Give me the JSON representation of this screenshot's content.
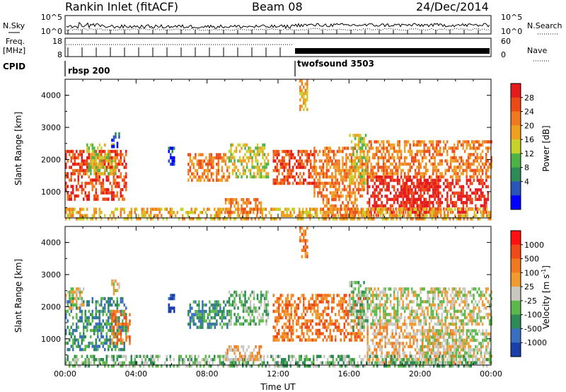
{
  "header": {
    "station": "Rankin Inlet (fitACF)",
    "beam": "Beam 08",
    "date": "24/Dec/2014"
  },
  "top_panels": {
    "nsky_label": "N.Sky",
    "nsky_ticks": [
      "10^5",
      "10^0"
    ],
    "nsearch_label": "N.Search",
    "nsearch_ticks": [
      "10^5",
      "10^0"
    ],
    "freq_label": "Freq.",
    "freq_unit": "[MHz]",
    "freq_ticks": [
      "18",
      "8"
    ],
    "nave_label": "Nave",
    "nave_ticks": [
      "60",
      "0"
    ],
    "cpid_label": "CPID",
    "programs": [
      {
        "name": "rbsp 200",
        "start_hour": 0
      },
      {
        "name": "twofsound 3503",
        "start_hour": 13
      }
    ]
  },
  "chart_data": [
    {
      "type": "heatmap",
      "panel": "power",
      "ylabel": "Slant Range [km]",
      "ylim": [
        180,
        4500
      ],
      "yticks": [
        "1000",
        "2000",
        "3000",
        "4000"
      ],
      "xlim": [
        0,
        24
      ],
      "xticks": [
        "00:00",
        "04:00",
        "08:00",
        "12:00",
        "16:00",
        "20:00",
        "00:00"
      ],
      "colorbar": {
        "label": "Power [dB]",
        "ticks": [
          "4",
          "8",
          "12",
          "16",
          "20",
          "24",
          "28"
        ],
        "colors": [
          "#0000ff",
          "#2a55b8",
          "#2e8a57",
          "#4fb247",
          "#c9d22b",
          "#f0a020",
          "#f07a20",
          "#ee4a18",
          "#e41a1c"
        ]
      },
      "regions": [
        {
          "x0": 0.0,
          "x1": 3.4,
          "y0": 800,
          "y1": 2300,
          "level": 7
        },
        {
          "x0": 1.2,
          "x1": 2.8,
          "y0": 1600,
          "y1": 2500,
          "level": 4
        },
        {
          "x0": 2.6,
          "x1": 3.0,
          "y0": 2400,
          "y1": 2850,
          "level": 1
        },
        {
          "x0": 5.8,
          "x1": 6.1,
          "y0": 1900,
          "y1": 2400,
          "level": 1
        },
        {
          "x0": 6.9,
          "x1": 9.2,
          "y0": 1400,
          "y1": 2200,
          "level": 6
        },
        {
          "x0": 9.2,
          "x1": 11.4,
          "y0": 1500,
          "y1": 2500,
          "level": 4
        },
        {
          "x0": 11.7,
          "x1": 14.0,
          "y0": 1300,
          "y1": 2300,
          "level": 7
        },
        {
          "x0": 13.2,
          "x1": 13.6,
          "y0": 3600,
          "y1": 4500,
          "level": 5
        },
        {
          "x0": 14.0,
          "x1": 16.8,
          "y0": 900,
          "y1": 2400,
          "level": 6
        },
        {
          "x0": 16.0,
          "x1": 17.0,
          "y0": 1300,
          "y1": 2800,
          "level": 4
        },
        {
          "x0": 17.0,
          "x1": 24.0,
          "y0": 1500,
          "y1": 2600,
          "level": 6
        },
        {
          "x0": 17.0,
          "x1": 21.0,
          "y0": 250,
          "y1": 1500,
          "level": 8
        },
        {
          "x0": 19.0,
          "x1": 23.8,
          "y0": 400,
          "y1": 1400,
          "level": 8
        },
        {
          "x0": 0.0,
          "x1": 24.0,
          "y0": 200,
          "y1": 500,
          "level": 5
        },
        {
          "x0": 9.0,
          "x1": 11.0,
          "y0": 350,
          "y1": 800,
          "level": 6
        },
        {
          "x0": 14.5,
          "x1": 16.5,
          "y0": 250,
          "y1": 900,
          "level": 6
        }
      ]
    },
    {
      "type": "heatmap",
      "panel": "velocity",
      "ylabel": "Slant Range [km]",
      "ylim": [
        180,
        4500
      ],
      "yticks": [
        "1000",
        "2000",
        "3000",
        "4000"
      ],
      "xlim": [
        0,
        24
      ],
      "xlabel": "Time UT",
      "xticks": [
        "00:00",
        "04:00",
        "08:00",
        "12:00",
        "16:00",
        "20:00",
        "00:00"
      ],
      "colorbar": {
        "label": "Velocity [m s^-1]",
        "ticks": [
          "1000",
          "500",
          "100",
          "25",
          "-25",
          "-100",
          "-500",
          "-1000"
        ],
        "colors": [
          "#1a3fa8",
          "#3a6fc0",
          "#2e8a57",
          "#5cb84a",
          "#c8c8c0",
          "#f09a30",
          "#f07a20",
          "#f04a18",
          "#ff1010"
        ]
      },
      "regions": [
        {
          "x0": 0.0,
          "x1": 3.4,
          "y0": 700,
          "y1": 2300,
          "level": 2
        },
        {
          "x0": 0.0,
          "x1": 1.0,
          "y0": 2000,
          "y1": 2600,
          "level": 4
        },
        {
          "x0": 2.6,
          "x1": 3.6,
          "y0": 900,
          "y1": 1900,
          "level": 6
        },
        {
          "x0": 2.6,
          "x1": 3.0,
          "y0": 2400,
          "y1": 2850,
          "level": 4
        },
        {
          "x0": 5.8,
          "x1": 6.1,
          "y0": 1900,
          "y1": 2400,
          "level": 0
        },
        {
          "x0": 6.9,
          "x1": 9.2,
          "y0": 1400,
          "y1": 2200,
          "level": 2
        },
        {
          "x0": 9.2,
          "x1": 11.4,
          "y0": 1500,
          "y1": 2500,
          "level": 3
        },
        {
          "x0": 11.7,
          "x1": 16.8,
          "y0": 1000,
          "y1": 2400,
          "level": 6
        },
        {
          "x0": 13.2,
          "x1": 13.6,
          "y0": 3600,
          "y1": 4500,
          "level": 6
        },
        {
          "x0": 16.0,
          "x1": 17.0,
          "y0": 1300,
          "y1": 2800,
          "level": 3
        },
        {
          "x0": 17.0,
          "x1": 24.0,
          "y0": 1500,
          "y1": 2600,
          "level": 4
        },
        {
          "x0": 17.0,
          "x1": 22.5,
          "y0": 300,
          "y1": 1500,
          "level": 5
        },
        {
          "x0": 20.0,
          "x1": 24.0,
          "y0": 300,
          "y1": 1300,
          "level": 4
        },
        {
          "x0": 0.0,
          "x1": 24.0,
          "y0": 200,
          "y1": 500,
          "level": 3
        },
        {
          "x0": 9.0,
          "x1": 11.0,
          "y0": 350,
          "y1": 800,
          "level": 5
        }
      ]
    }
  ]
}
